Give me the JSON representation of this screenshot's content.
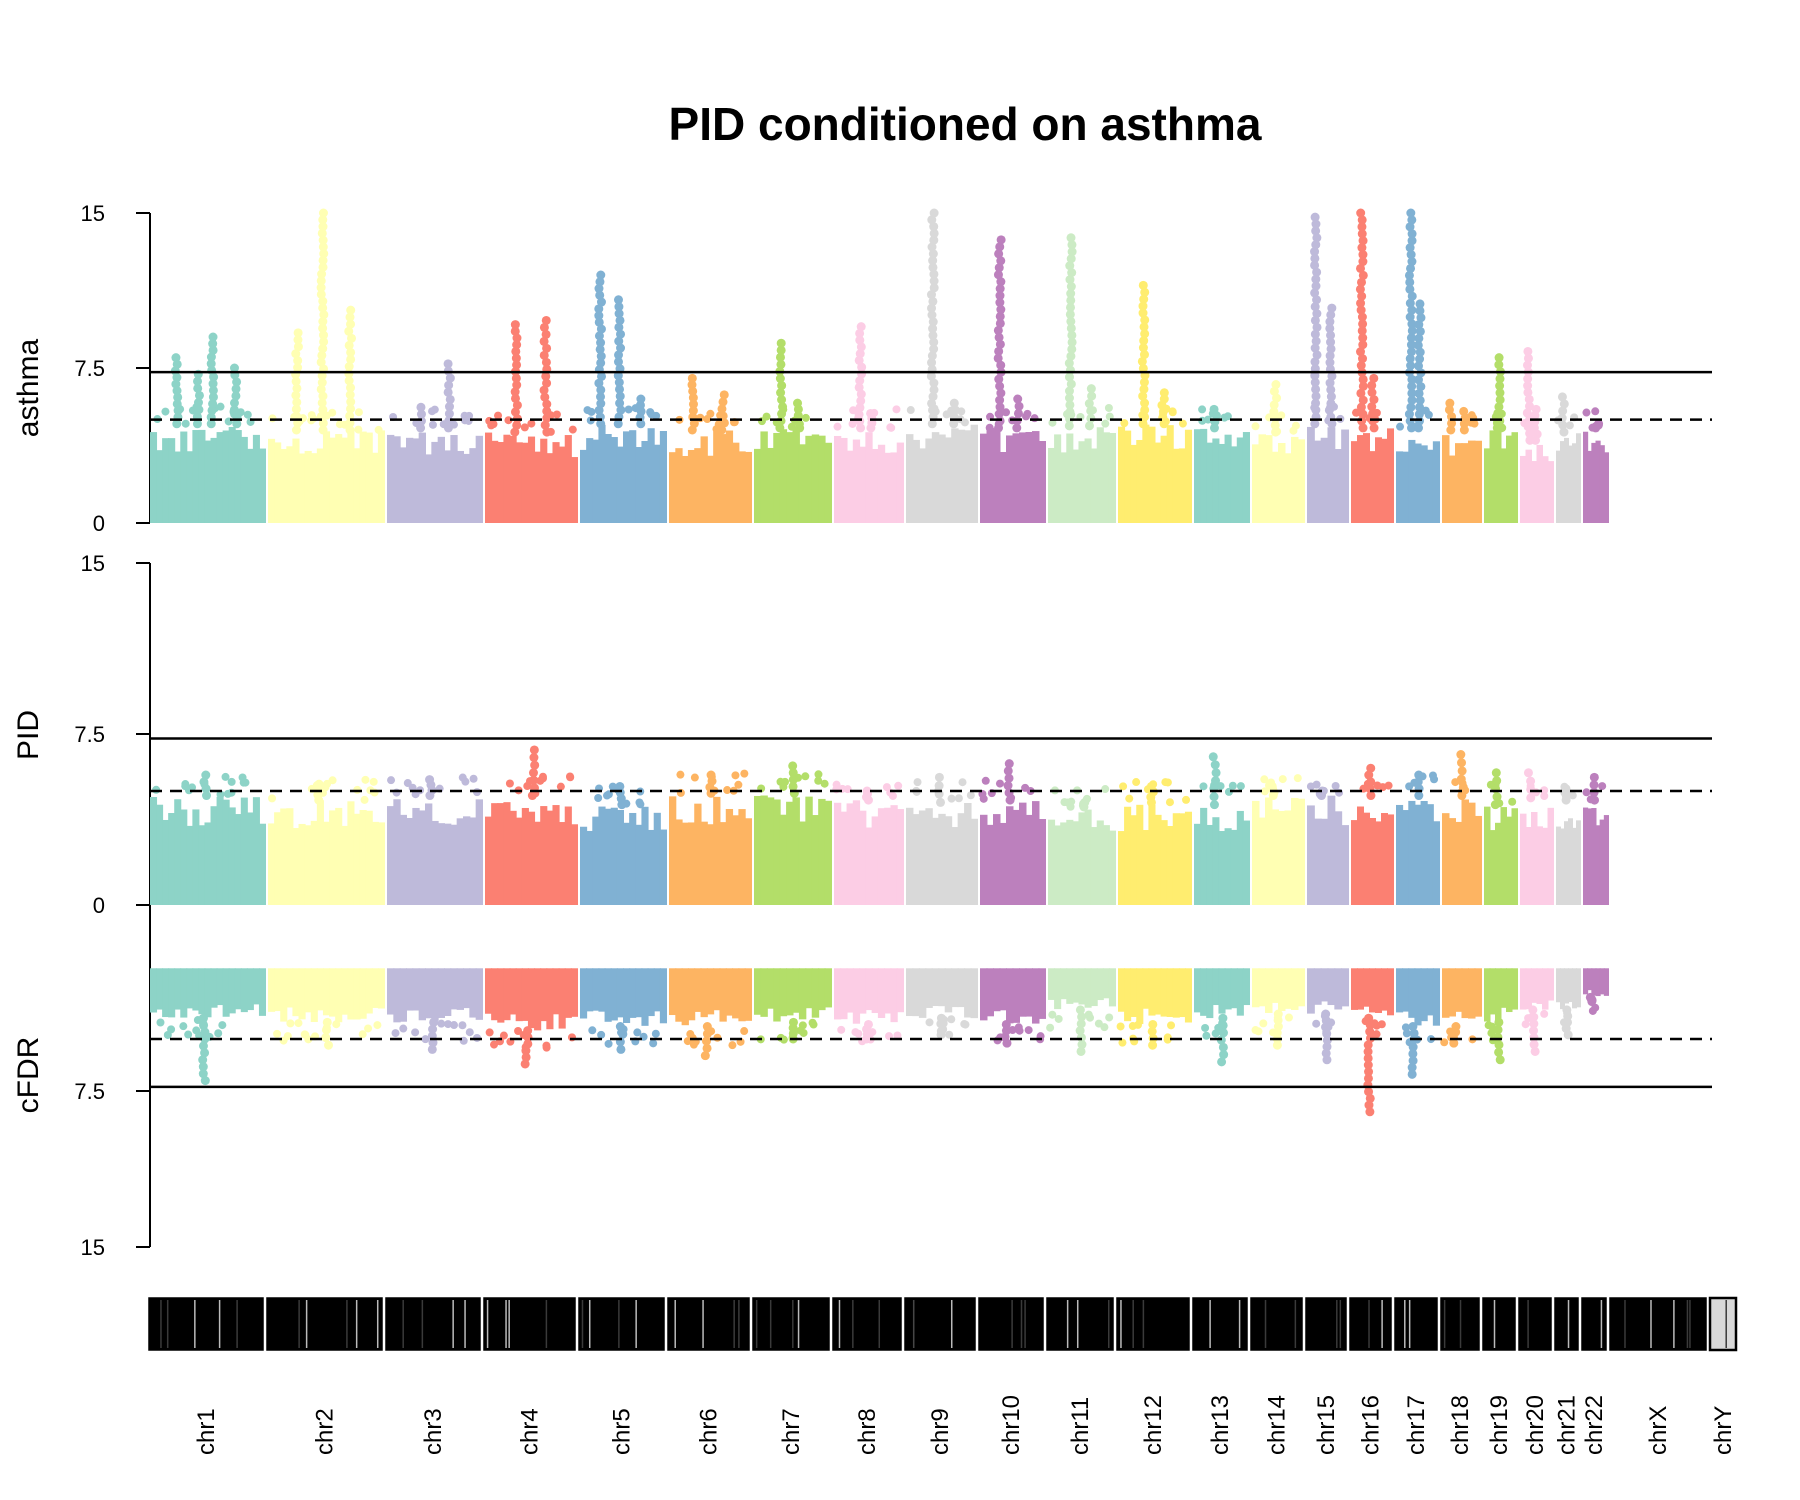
{
  "chart_data": {
    "type": "scatter",
    "title": "PID conditioned on asthma",
    "panels": [
      {
        "id": "asthma",
        "ylabel": "asthma",
        "ylim": [
          0,
          15
        ],
        "ticks": [
          "15",
          "7.5",
          "0"
        ],
        "solid_line": 7.3,
        "dashed_line": 5.0
      },
      {
        "id": "PID",
        "ylabel": "PID",
        "ylim": [
          0,
          15
        ],
        "ticks": [
          "15",
          "7.5",
          "0"
        ],
        "solid_line": 7.3,
        "dashed_line": 5.0
      },
      {
        "id": "cFDR",
        "ylabel": "cFDR",
        "ylim": [
          0,
          15
        ],
        "ticks": [
          "7.5",
          "15"
        ],
        "inverted": true,
        "solid_line": 7.3,
        "dashed_line": 5.0
      }
    ],
    "chromosomes": [
      {
        "name": "chr1",
        "color": "#8DD3C7",
        "asthma_base": 4.8,
        "asthma_peaks": [
          8.0,
          7.2,
          9.0,
          7.5
        ],
        "pid_base": 4.8,
        "pid_peak": 5.7,
        "cfdr_base": 4.0,
        "cfdr_peak": 7.0
      },
      {
        "name": "chr2",
        "color": "#FFFFB3",
        "asthma_base": 4.5,
        "asthma_peaks": [
          9.2,
          15.0,
          10.3
        ],
        "pid_base": 4.6,
        "pid_peak": 5.3,
        "cfdr_base": 4.2,
        "cfdr_peak": 5.3
      },
      {
        "name": "chr3",
        "color": "#BEBADA",
        "asthma_base": 4.6,
        "asthma_peaks": [
          5.6,
          7.7
        ],
        "pid_base": 4.8,
        "pid_peak": 5.5,
        "cfdr_base": 4.2,
        "cfdr_peak": 5.5
      },
      {
        "name": "chr4",
        "color": "#FB8072",
        "asthma_base": 4.4,
        "asthma_peaks": [
          9.6,
          9.8
        ],
        "pid_base": 4.8,
        "pid_peak": 6.8,
        "cfdr_base": 4.6,
        "cfdr_peak": 6.2
      },
      {
        "name": "chr5",
        "color": "#80B1D3",
        "asthma_base": 4.8,
        "asthma_peaks": [
          12.0,
          10.8,
          6.0
        ],
        "pid_base": 4.4,
        "pid_peak": 5.2,
        "cfdr_base": 4.4,
        "cfdr_peak": 5.5
      },
      {
        "name": "chr6",
        "color": "#FDB462",
        "asthma_base": 4.5,
        "asthma_peaks": [
          7.0,
          6.2
        ],
        "pid_base": 4.9,
        "pid_peak": 5.7,
        "cfdr_base": 4.4,
        "cfdr_peak": 5.8
      },
      {
        "name": "chr7",
        "color": "#B3DE69",
        "asthma_base": 4.6,
        "asthma_peaks": [
          8.7,
          5.8
        ],
        "pid_base": 4.9,
        "pid_peak": 6.1,
        "cfdr_base": 4.2,
        "cfdr_peak": 5.0
      },
      {
        "name": "chr8",
        "color": "#FCCDE5",
        "asthma_base": 4.6,
        "asthma_peaks": [
          9.5,
          5.3
        ],
        "pid_base": 4.6,
        "pid_peak": 5.0,
        "cfdr_base": 4.3,
        "cfdr_peak": 5.0
      },
      {
        "name": "chr9",
        "color": "#D9D9D9",
        "asthma_base": 4.8,
        "asthma_peaks": [
          15.0,
          5.8
        ],
        "pid_base": 4.5,
        "pid_peak": 5.6,
        "cfdr_base": 4.0,
        "cfdr_peak": 4.8
      },
      {
        "name": "chr10",
        "color": "#BC80BD",
        "asthma_base": 4.6,
        "asthma_peaks": [
          13.7,
          6.0
        ],
        "pid_base": 4.6,
        "pid_peak": 6.2,
        "cfdr_base": 4.3,
        "cfdr_peak": 5.2
      },
      {
        "name": "chr11",
        "color": "#CCEBC5",
        "asthma_base": 4.7,
        "asthma_peaks": [
          13.8,
          6.5
        ],
        "pid_base": 4.3,
        "pid_peak": 4.5,
        "cfdr_base": 3.6,
        "cfdr_peak": 5.6
      },
      {
        "name": "chr12",
        "color": "#FFED6F",
        "asthma_base": 4.8,
        "asthma_peaks": [
          11.5,
          6.3
        ],
        "pid_base": 4.5,
        "pid_peak": 5.2,
        "cfdr_base": 4.3,
        "cfdr_peak": 5.3
      },
      {
        "name": "chr13",
        "color": "#8DD3C7",
        "asthma_base": 4.6,
        "asthma_peaks": [
          5.5
        ],
        "pid_base": 4.4,
        "pid_peak": 6.5,
        "cfdr_base": 4.0,
        "cfdr_peak": 6.1
      },
      {
        "name": "chr14",
        "color": "#FFFFB3",
        "asthma_base": 4.4,
        "asthma_peaks": [
          6.7
        ],
        "pid_base": 4.8,
        "pid_peak": 5.2,
        "cfdr_base": 3.8,
        "cfdr_peak": 5.3
      },
      {
        "name": "chr15",
        "color": "#BEBADA",
        "asthma_base": 4.8,
        "asthma_peaks": [
          14.8,
          10.4
        ],
        "pid_base": 4.8,
        "pid_peak": 5.0,
        "cfdr_base": 3.8,
        "cfdr_peak": 6.0
      },
      {
        "name": "chr16",
        "color": "#FB8072",
        "asthma_base": 4.6,
        "asthma_peaks": [
          15.0,
          7.0
        ],
        "pid_base": 4.8,
        "pid_peak": 6.0,
        "cfdr_base": 4.0,
        "cfdr_peak": 8.5
      },
      {
        "name": "chr17",
        "color": "#80B1D3",
        "asthma_base": 4.6,
        "asthma_peaks": [
          15.0,
          10.6
        ],
        "pid_base": 4.8,
        "pid_peak": 5.7,
        "cfdr_base": 4.4,
        "cfdr_peak": 6.7
      },
      {
        "name": "chr18",
        "color": "#FDB462",
        "asthma_base": 4.5,
        "asthma_peaks": [
          5.8,
          5.4
        ],
        "pid_base": 4.8,
        "pid_peak": 6.6,
        "cfdr_base": 4.4,
        "cfdr_peak": 5.2
      },
      {
        "name": "chr19",
        "color": "#B3DE69",
        "asthma_base": 4.6,
        "asthma_peaks": [
          8.0,
          5.3
        ],
        "pid_base": 4.4,
        "pid_peak": 5.8,
        "cfdr_base": 4.2,
        "cfdr_peak": 6.0
      },
      {
        "name": "chr20",
        "color": "#FCCDE5",
        "asthma_base": 4.0,
        "asthma_peaks": [
          8.3,
          5.5
        ],
        "pid_base": 4.7,
        "pid_peak": 5.8,
        "cfdr_base": 3.6,
        "cfdr_peak": 5.6
      },
      {
        "name": "chr21",
        "color": "#D9D9D9",
        "asthma_base": 4.4,
        "asthma_peaks": [
          6.1
        ],
        "pid_base": 4.6,
        "pid_peak": 5.1,
        "cfdr_base": 3.6,
        "cfdr_peak": 4.8
      },
      {
        "name": "chr22",
        "color": "#BC80BD",
        "asthma_base": 4.6,
        "asthma_peaks": [
          4.8
        ],
        "pid_base": 4.6,
        "pid_peak": 5.6,
        "cfdr_base": 3.0,
        "cfdr_peak": 3.2
      },
      {
        "name": "chrX",
        "color": "#8DD3C7",
        "asthma_base": 0,
        "asthma_peaks": [],
        "pid_base": 0,
        "pid_peak": 0,
        "cfdr_base": 0,
        "cfdr_peak": 0
      },
      {
        "name": "chrY",
        "color": "#FFFFB3",
        "asthma_base": 0,
        "asthma_peaks": [],
        "pid_base": 0,
        "pid_peak": 0,
        "cfdr_base": 0,
        "cfdr_peak": 0
      }
    ]
  }
}
